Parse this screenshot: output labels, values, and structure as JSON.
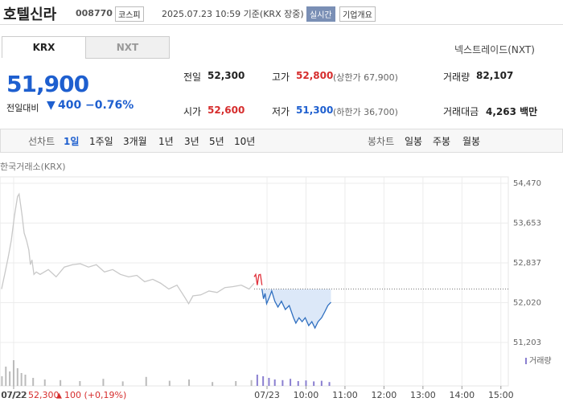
{
  "header": {
    "name": "호텔신라",
    "code": "008770",
    "market": "코스피",
    "timestamp": "2025.07.23 10:59 기준(KRX 장중)",
    "realtime": "실시간",
    "company_info": "기업개요"
  },
  "tabs": [
    "KRX",
    "NXT"
  ],
  "nxt_link": "넥스트레이드(NXT)",
  "price": {
    "current": "51,900",
    "change_label": "전일대비",
    "change": "400",
    "change_pct": "−0.76%"
  },
  "quote": {
    "prev_label": "전일",
    "prev": "52,300",
    "high_label": "고가",
    "high": "52,800",
    "upper_limit": "(상한가 67,900)",
    "volume_label": "거래량",
    "volume": "82,107",
    "open_label": "시가",
    "open": "52,600",
    "low_label": "저가",
    "low": "51,300",
    "lower_limit": "(하한가 36,700)",
    "amount_label": "거래대금",
    "amount": "4,263 백만"
  },
  "toolbar": {
    "line_label": "선차트",
    "periods": [
      "1일",
      "1주일",
      "3개월",
      "1년",
      "3년",
      "5년",
      "10년"
    ],
    "candle_label": "봉차트",
    "candles": [
      "일봉",
      "주봉",
      "월봉"
    ]
  },
  "chart_data": {
    "type": "line",
    "subtitle": "한국거래소(KRX)",
    "xlim": [
      2.15,
      15.19
    ],
    "xticks": [
      {
        "value": 2.5,
        "label": "07/22"
      },
      {
        "value": 9,
        "label": "07/23"
      },
      {
        "value": 10,
        "label": "10:00"
      },
      {
        "value": 11,
        "label": "11:00"
      },
      {
        "value": 12,
        "label": "12:00"
      },
      {
        "value": 13,
        "label": "13:00"
      },
      {
        "value": 14,
        "label": "14:00"
      },
      {
        "value": 15,
        "label": "15:00"
      }
    ],
    "ylim": [
      51203,
      54470
    ],
    "yticks": [
      {
        "value": 51203,
        "label": "51,203"
      },
      {
        "value": 52020,
        "label": "52,020"
      },
      {
        "value": 52837,
        "label": "52,837"
      },
      {
        "value": 53653,
        "label": "53,653"
      },
      {
        "value": 54470,
        "label": "54,470"
      }
    ],
    "grid": true,
    "prev_close": 52300,
    "series": [
      {
        "color": "#c8c8c8",
        "x": [
          2.19,
          2.27,
          2.36,
          2.44,
          2.52,
          2.6,
          2.64,
          2.71,
          2.77,
          2.83,
          2.89,
          2.93,
          2.97,
          3.02,
          3.08,
          3.18,
          3.39,
          3.59,
          3.8,
          4.01,
          4.21,
          4.42,
          4.62,
          4.83,
          5.04,
          5.24,
          5.45,
          5.66,
          5.86,
          6.07,
          6.27,
          6.48,
          6.69,
          6.89,
          6.99,
          7.1,
          7.3,
          7.51,
          7.72,
          7.92,
          8.13,
          8.34,
          8.54,
          8.67
        ],
        "values": [
          52300,
          52600,
          52950,
          53300,
          53800,
          54200,
          54250,
          53850,
          53450,
          53300,
          53100,
          52800,
          52900,
          52600,
          52650,
          52600,
          52700,
          52550,
          52750,
          52800,
          52820,
          52750,
          52800,
          52650,
          52700,
          52600,
          52550,
          52580,
          52450,
          52500,
          52420,
          52300,
          52380,
          52130,
          52000,
          52160,
          52180,
          52260,
          52230,
          52330,
          52350,
          52380,
          52300,
          52420
        ]
      },
      {
        "color": "#e0303a",
        "x": [
          8.67,
          8.71,
          8.75,
          8.79,
          8.83,
          8.87
        ],
        "values": [
          52550,
          52600,
          52380,
          52590,
          52600,
          52380
        ]
      },
      {
        "color": "#2f6fc0",
        "fill": "#dce8f8",
        "x": [
          8.87,
          8.91,
          8.95,
          8.99,
          9.06,
          9.12,
          9.2,
          9.28,
          9.37,
          9.47,
          9.57,
          9.68,
          9.74,
          9.82,
          9.9,
          9.98,
          10.07,
          10.15,
          10.23,
          10.31,
          10.4,
          10.48,
          10.56,
          10.64
        ],
        "values": [
          52300,
          52100,
          52210,
          52000,
          52130,
          52260,
          52050,
          51930,
          52050,
          51880,
          51960,
          51710,
          51600,
          51710,
          51630,
          51710,
          51550,
          51630,
          51500,
          51630,
          51710,
          51830,
          51960,
          52030
        ]
      }
    ],
    "volume": {
      "name": "거래량",
      "ylim": [
        0,
        100
      ],
      "x": [
        2.2,
        2.3,
        2.4,
        2.5,
        2.6,
        2.7,
        2.8,
        3.0,
        3.3,
        3.7,
        4.2,
        4.8,
        5.3,
        5.9,
        6.5,
        7.0,
        7.6,
        8.2,
        8.6,
        8.75,
        8.9,
        9.05,
        9.2,
        9.4,
        9.6,
        9.8,
        10.0,
        10.2,
        10.4,
        10.6
      ],
      "values": [
        30,
        60,
        45,
        80,
        55,
        40,
        35,
        25,
        20,
        18,
        15,
        22,
        14,
        28,
        16,
        20,
        12,
        15,
        18,
        35,
        30,
        25,
        20,
        18,
        22,
        15,
        17,
        14,
        16,
        12
      ],
      "colors": [
        "#bbbbbb",
        "#8a7fd0"
      ]
    },
    "footer": {
      "date": "07/22",
      "price": "52,300",
      "change": "100 (+0,19%)"
    }
  }
}
